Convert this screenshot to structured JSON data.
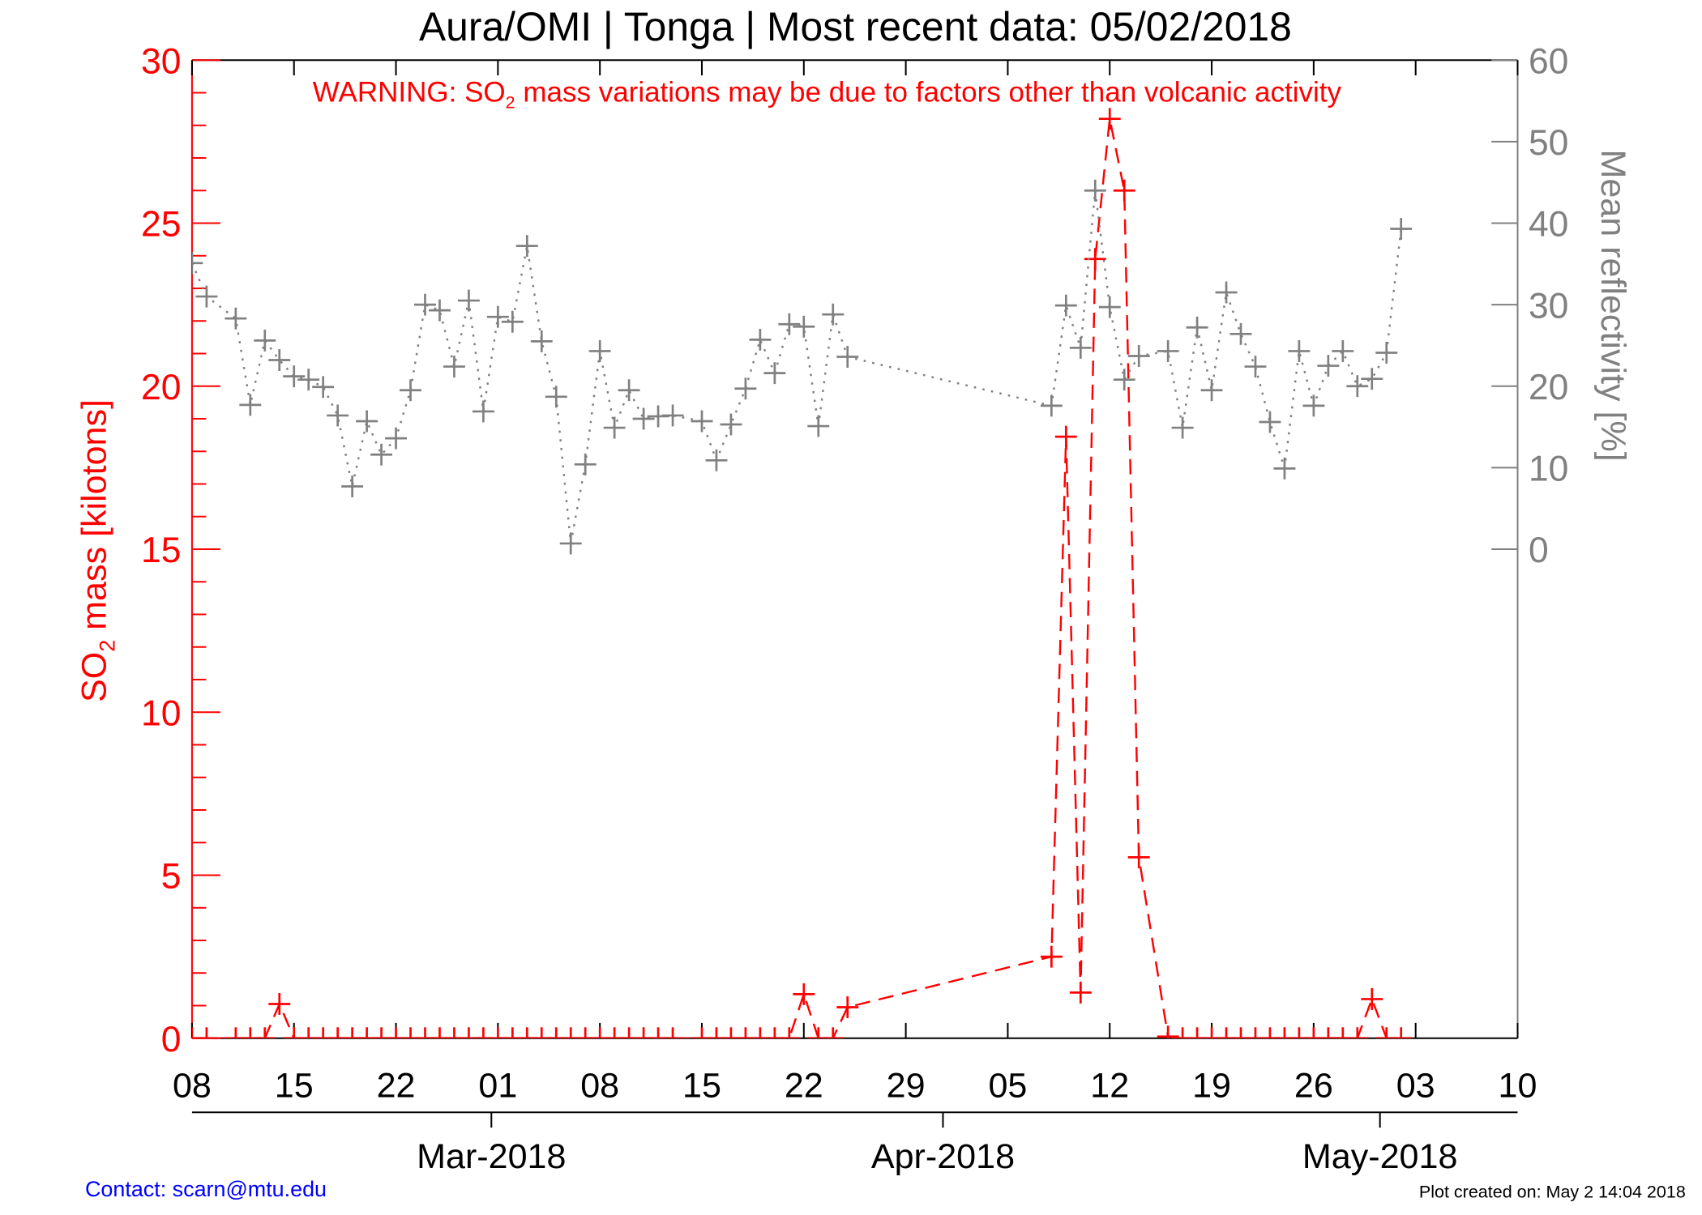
{
  "colors": {
    "so2": "#ff0000",
    "reflectivity": "#808080",
    "axis": "#000000",
    "contact": "#0000ff"
  },
  "chart_data": {
    "type": "line",
    "title": "Aura/OMI | Tonga | Most recent data: 05/02/2018",
    "warning": {
      "prefix": "WARNING: SO",
      "sub": "2",
      "suffix": " mass variations may be due to factors other than volcanic activity"
    },
    "ylabel_left": {
      "prefix": "SO",
      "sub": "2",
      "suffix": " mass [kilotons]"
    },
    "ylabel_right": "Mean reflectivity [%]",
    "ylim_left": [
      0,
      30
    ],
    "ylim_right": [
      -60,
      60
    ],
    "left_ticks": [
      "0",
      "5",
      "10",
      "15",
      "20",
      "25",
      "30"
    ],
    "right_ticks": [
      "0",
      "10",
      "20",
      "30",
      "40",
      "50",
      "60"
    ],
    "x_start": "2018-02-08",
    "x_end": "2018-05-10",
    "x_tick_labels": [
      "08",
      "15",
      "22",
      "01",
      "08",
      "15",
      "22",
      "29",
      "05",
      "12",
      "19",
      "26",
      "03",
      "10"
    ],
    "month_labels": [
      {
        "label": "Mar-2018",
        "day": 21
      },
      {
        "label": "Apr-2018",
        "day": 52
      },
      {
        "label": "May-2018",
        "day": 82
      }
    ],
    "series": [
      {
        "name": "SO2 mass (kilotons)",
        "axis": "left",
        "style": "dashed",
        "days": [
          0,
          1,
          3,
          4,
          5,
          6,
          7,
          8,
          9,
          10,
          11,
          12,
          13,
          14,
          15,
          16,
          17,
          18,
          19,
          20,
          21,
          22,
          23,
          24,
          25,
          26,
          27,
          28,
          29,
          30,
          31,
          32,
          33,
          35,
          36,
          37,
          38,
          39,
          40,
          41,
          42,
          43,
          44,
          45,
          59,
          60,
          61,
          62,
          63,
          64,
          65,
          67,
          68,
          69,
          70,
          71,
          72,
          73,
          74,
          75,
          76,
          77,
          78,
          79,
          80,
          81,
          82,
          83
        ],
        "values": [
          0,
          0,
          0,
          0,
          0,
          1.05,
          0,
          0,
          0,
          0,
          0,
          0,
          0,
          0,
          0,
          0,
          0,
          0,
          0,
          0,
          0,
          0,
          0,
          0,
          0,
          0,
          0,
          0,
          0,
          0,
          0,
          0,
          0,
          0,
          0,
          0,
          0,
          0,
          0,
          0,
          1.35,
          0,
          0,
          0.95,
          2.5,
          18.45,
          1.4,
          23.9,
          28.2,
          26.0,
          5.55,
          0.05,
          0,
          0,
          0,
          0,
          0,
          0,
          0,
          0,
          0,
          0,
          0,
          0,
          0,
          1.2,
          0,
          0
        ]
      },
      {
        "name": "Mean reflectivity (%)",
        "axis": "right",
        "style": "dotted",
        "days": [
          0,
          1,
          3,
          4,
          5,
          6,
          7,
          8,
          9,
          10,
          11,
          12,
          13,
          14,
          15,
          16,
          17,
          18,
          19,
          20,
          21,
          22,
          23,
          24,
          25,
          26,
          27,
          28,
          29,
          30,
          31,
          32,
          33,
          35,
          36,
          37,
          38,
          39,
          40,
          41,
          42,
          43,
          44,
          45,
          59,
          60,
          61,
          62,
          63,
          64,
          65,
          67,
          68,
          69,
          70,
          71,
          72,
          73,
          74,
          75,
          76,
          77,
          78,
          79,
          80,
          81,
          82,
          83
        ],
        "values": [
          35.1,
          31,
          28.3,
          17.7,
          25.6,
          23.2,
          21.2,
          20.8,
          19.9,
          16.4,
          7.7,
          15.7,
          11.6,
          13.6,
          19.5,
          30,
          29.3,
          22.4,
          30.5,
          16.9,
          28.5,
          27.9,
          37.2,
          25.5,
          18.7,
          0.7,
          10.4,
          24.3,
          14.9,
          19.5,
          16,
          16.3,
          16.4,
          15.7,
          10.9,
          15.3,
          19.7,
          25.7,
          21.6,
          27.6,
          27.3,
          15.1,
          28.8,
          23.6,
          17.6,
          29.9,
          24.7,
          44,
          29.7,
          20.8,
          23.7,
          24.3,
          14.9,
          27.2,
          19.5,
          31.5,
          26.4,
          22.4,
          15.6,
          9.9,
          24.3,
          17.6,
          22.5,
          24.3,
          20,
          20.9,
          24.1,
          39.3
        ]
      }
    ]
  },
  "footer": {
    "contact": "Contact: scarn@mtu.edu",
    "created": "Plot created on: May  2 14:04 2018"
  }
}
